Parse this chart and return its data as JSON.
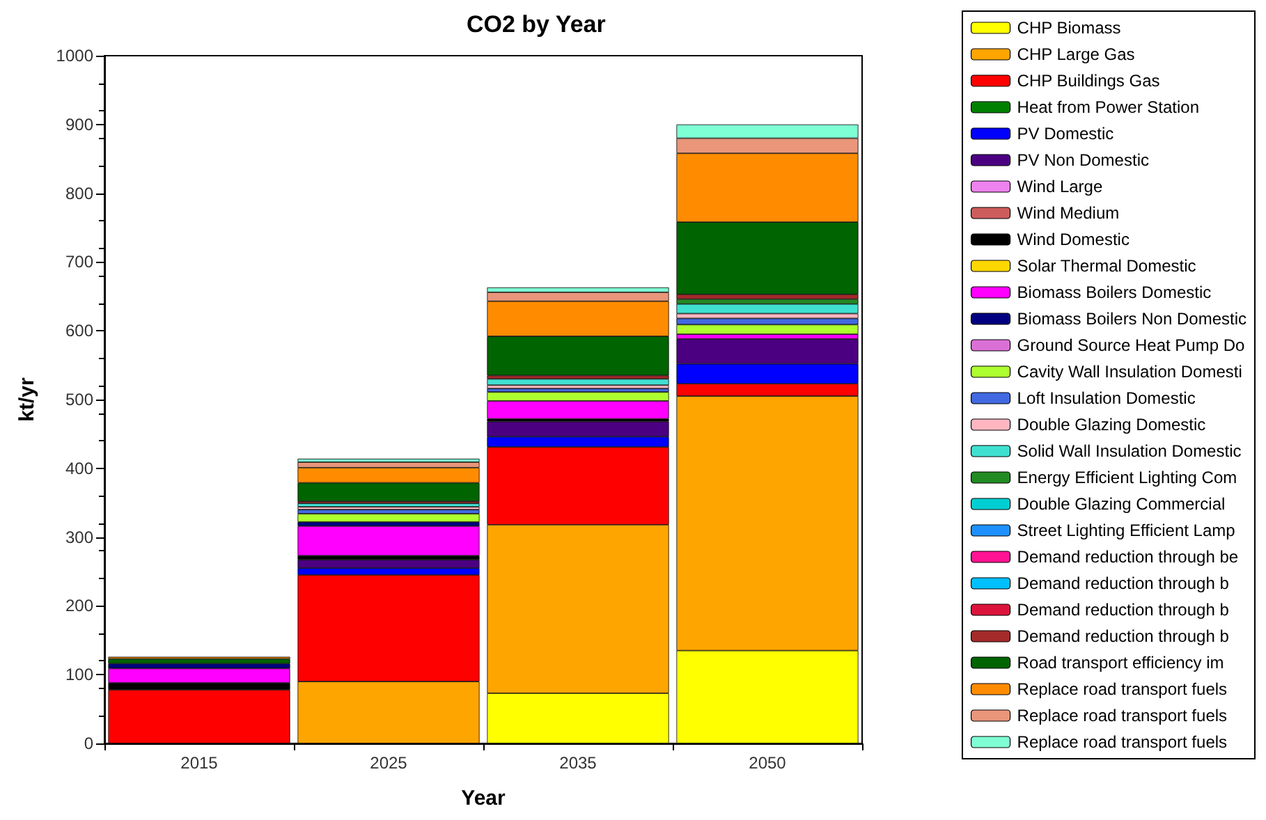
{
  "chart_data": {
    "type": "bar",
    "stacked": true,
    "title": "CO2 by Year",
    "xlabel": "Year",
    "ylabel": "kt/yr",
    "categories": [
      "2015",
      "2025",
      "2035",
      "2050"
    ],
    "ylim": [
      0,
      1000
    ],
    "yticks": [
      0,
      100,
      200,
      300,
      400,
      500,
      600,
      700,
      800,
      900,
      1000
    ],
    "grid": false,
    "legend": "right",
    "series": [
      {
        "name": "CHP Biomass",
        "color": "#ffff00",
        "values": [
          0,
          0,
          73,
          135
        ]
      },
      {
        "name": "CHP Large Gas",
        "color": "#ffa500",
        "values": [
          0,
          90,
          245,
          370
        ]
      },
      {
        "name": "CHP Buildings Gas",
        "color": "#ff0000",
        "values": [
          78,
          155,
          113,
          18
        ]
      },
      {
        "name": "Heat from Power Station",
        "color": "#008000",
        "values": [
          0,
          0,
          0,
          0
        ]
      },
      {
        "name": "PV Domestic",
        "color": "#0000ff",
        "values": [
          0,
          10,
          15,
          29
        ]
      },
      {
        "name": "PV Non Domestic",
        "color": "#4b0082",
        "values": [
          0,
          12,
          22,
          36
        ]
      },
      {
        "name": "Wind Large",
        "color": "#ee82ee",
        "values": [
          0,
          0,
          0,
          0
        ]
      },
      {
        "name": "Wind Medium",
        "color": "#cd5c5c",
        "values": [
          0,
          0,
          0,
          0
        ]
      },
      {
        "name": "Wind Domestic",
        "color": "#000000",
        "values": [
          10,
          6,
          4,
          0
        ]
      },
      {
        "name": "Solar Thermal Domestic",
        "color": "#ffd700",
        "values": [
          0,
          0,
          0,
          0
        ]
      },
      {
        "name": "Biomass Boilers Domestic",
        "color": "#ff00ff",
        "values": [
          21,
          43,
          26,
          7
        ]
      },
      {
        "name": "Biomass Boilers Non Domestic",
        "color": "#000080",
        "values": [
          7,
          6,
          0,
          0
        ]
      },
      {
        "name": "Ground Source Heat Pump Do",
        "color": "#da70d6",
        "values": [
          0,
          0,
          0,
          0
        ]
      },
      {
        "name": "Cavity Wall Insulation Domesti",
        "color": "#adff2f",
        "values": [
          0,
          12,
          13,
          14
        ]
      },
      {
        "name": "Loft Insulation Domestic",
        "color": "#4169e1",
        "values": [
          0,
          6,
          5,
          9
        ]
      },
      {
        "name": "Double Glazing Domestic",
        "color": "#ffb6c1",
        "values": [
          0,
          4,
          5,
          7
        ]
      },
      {
        "name": "Solid Wall Insulation Domestic",
        "color": "#40e0d0",
        "values": [
          0,
          5,
          9,
          14
        ]
      },
      {
        "name": "Energy Efficient Lighting Com",
        "color": "#228b22",
        "values": [
          0,
          0,
          0,
          7
        ]
      },
      {
        "name": "Double Glazing Commercial",
        "color": "#00ced1",
        "values": [
          0,
          0,
          0,
          0
        ]
      },
      {
        "name": "Street Lighting Efficient Lamp",
        "color": "#1e90ff",
        "values": [
          0,
          0,
          0,
          0
        ]
      },
      {
        "name": "Demand reduction through be",
        "color": "#ff1493",
        "values": [
          0,
          0,
          0,
          0
        ]
      },
      {
        "name": "Demand reduction through b",
        "color": "#00bfff",
        "values": [
          0,
          0,
          0,
          0
        ]
      },
      {
        "name": "Demand reduction through b",
        "color": "#dc143c",
        "values": [
          0,
          0,
          0,
          0
        ]
      },
      {
        "name": "Demand reduction through b",
        "color": "#a52a2a",
        "values": [
          0,
          3,
          5,
          7
        ]
      },
      {
        "name": "Road transport efficiency im",
        "color": "#006400",
        "values": [
          7,
          27,
          57,
          105
        ]
      },
      {
        "name": "Replace road transport fuels",
        "color": "#ff8c00",
        "values": [
          3,
          22,
          51,
          100
        ]
      },
      {
        "name": "Replace road transport fuels",
        "color": "#e9967a",
        "values": [
          0,
          8,
          13,
          22
        ]
      },
      {
        "name": "Replace road transport fuels",
        "color": "#7fffd4",
        "values": [
          0,
          5,
          7,
          20
        ]
      }
    ]
  }
}
